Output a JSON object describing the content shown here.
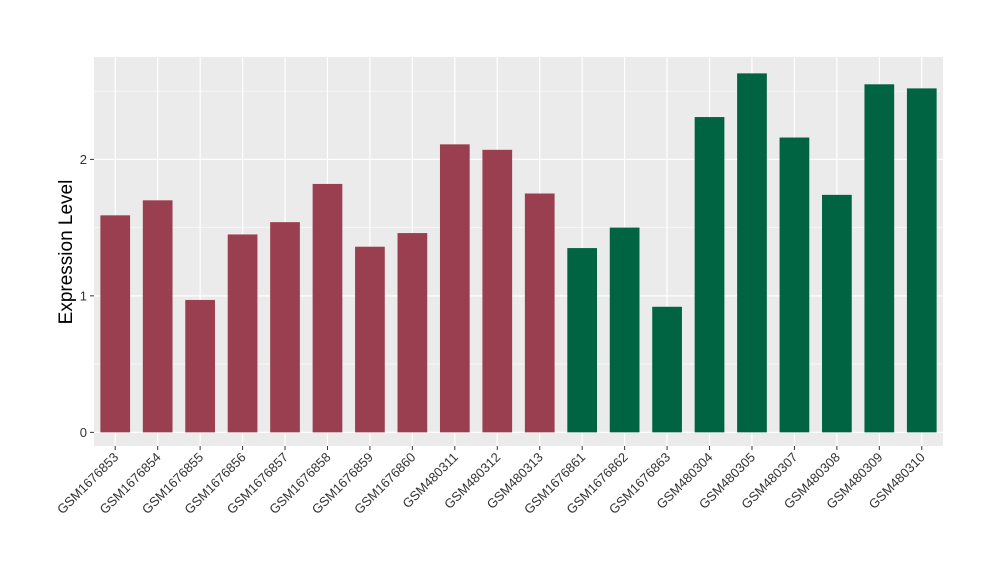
{
  "chart_data": {
    "type": "bar",
    "title": "",
    "xlabel": "",
    "ylabel": "Expression Level",
    "ylim": [
      -0.1,
      2.75
    ],
    "yticks": [
      0,
      1,
      2
    ],
    "grid": true,
    "colors": {
      "group_a": "#9a3f4f",
      "group_b": "#006342",
      "panel": "#ebebeb",
      "grid": "#ffffff"
    },
    "categories": [
      "GSM1676853",
      "GSM1676854",
      "GSM1676855",
      "GSM1676856",
      "GSM1676857",
      "GSM1676858",
      "GSM1676859",
      "GSM1676860",
      "GSM480311",
      "GSM480312",
      "GSM480313",
      "GSM1676861",
      "GSM1676862",
      "GSM1676863",
      "GSM480304",
      "GSM480305",
      "GSM480307",
      "GSM480308",
      "GSM480309",
      "GSM480310"
    ],
    "values": [
      1.59,
      1.7,
      0.97,
      1.45,
      1.54,
      1.82,
      1.36,
      1.46,
      2.11,
      2.07,
      1.75,
      1.35,
      1.5,
      0.92,
      2.31,
      2.63,
      2.16,
      1.74,
      2.55,
      2.52
    ],
    "groups": [
      "a",
      "a",
      "a",
      "a",
      "a",
      "a",
      "a",
      "a",
      "a",
      "a",
      "a",
      "b",
      "b",
      "b",
      "b",
      "b",
      "b",
      "b",
      "b",
      "b"
    ]
  }
}
